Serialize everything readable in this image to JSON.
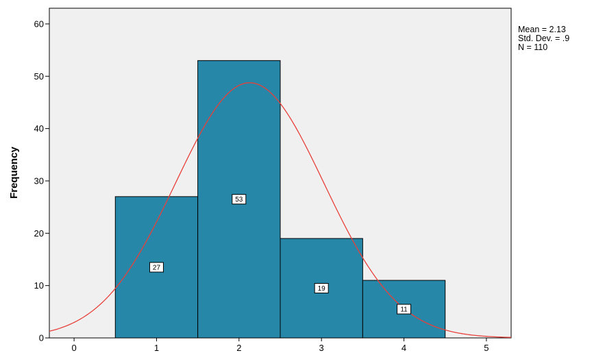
{
  "chart_data": {
    "type": "bar",
    "bins": [
      {
        "label": "1",
        "center": 1,
        "value": 27
      },
      {
        "label": "2",
        "center": 2,
        "value": 53
      },
      {
        "label": "3",
        "center": 3,
        "value": 19
      },
      {
        "label": "4",
        "center": 4,
        "value": 11
      }
    ],
    "bin_width": 1,
    "normal_curve": {
      "mean": 2.13,
      "std": 0.9,
      "n": 110,
      "color": "#e8403a"
    },
    "title": "",
    "xlabel": "",
    "ylabel": "Frequency",
    "xlim": [
      -0.3,
      5.3
    ],
    "ylim": [
      0,
      63
    ],
    "x_ticks": [
      "0",
      "1",
      "2",
      "3",
      "4",
      "5"
    ],
    "y_ticks": [
      "0",
      "10",
      "20",
      "30",
      "40",
      "50",
      "60"
    ],
    "grid": false,
    "stats_text": [
      "Mean = 2.13",
      "Std. Dev. = .9",
      "N = 110"
    ],
    "colors": {
      "bar_fill": "#2787a8",
      "bar_stroke": "#000000",
      "plot_bg": "#f0f0f0"
    }
  }
}
